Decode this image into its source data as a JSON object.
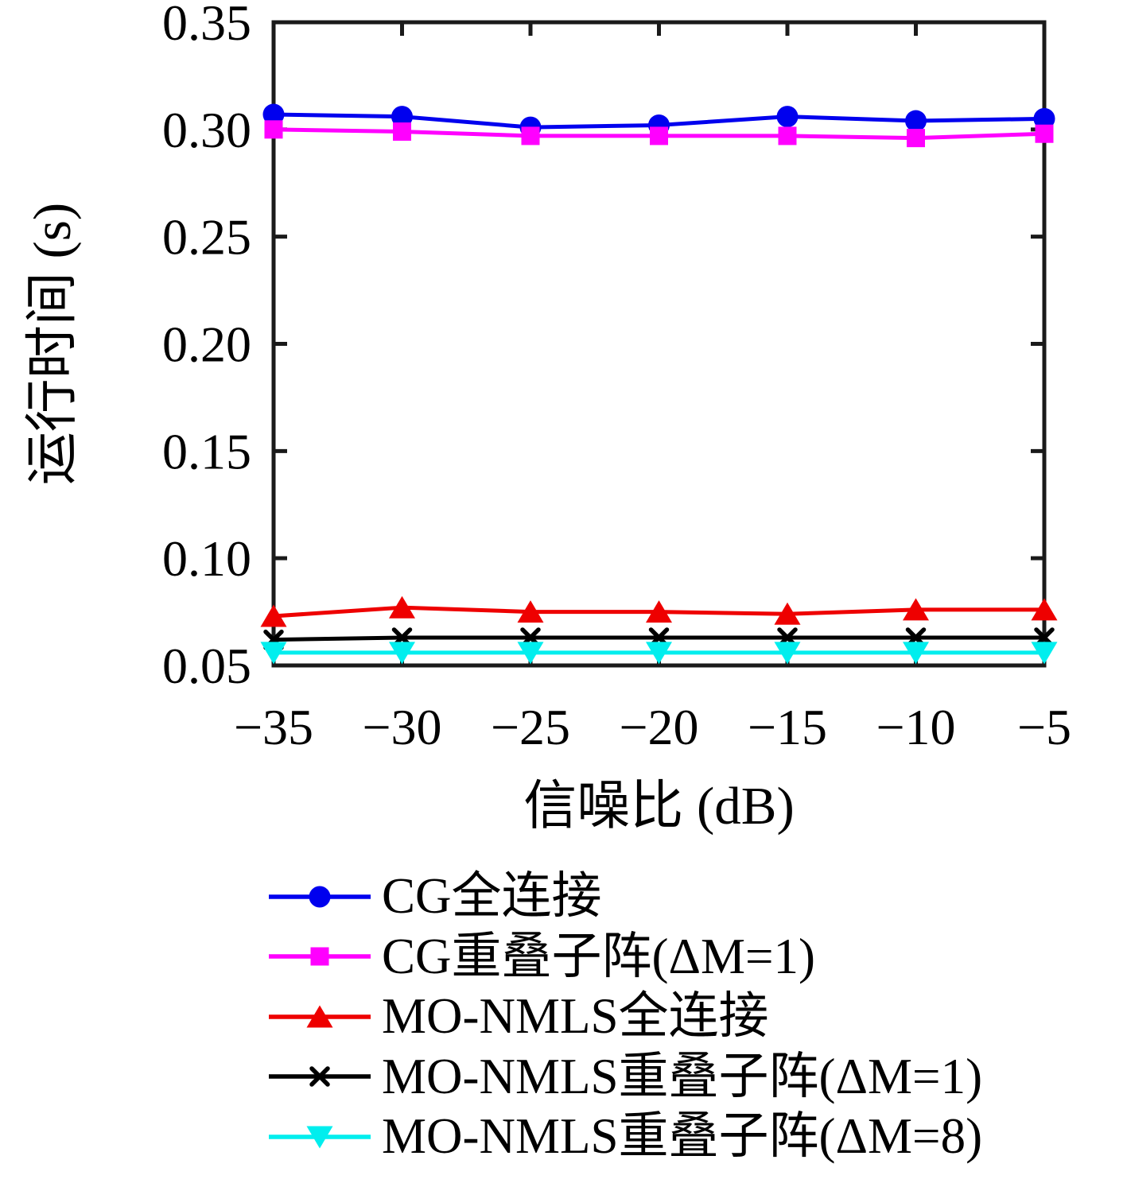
{
  "chart_data": {
    "type": "line",
    "title": "",
    "xlabel": "信噪比 (dB)",
    "ylabel": "运行时间 (s)",
    "x": [
      -35,
      -30,
      -25,
      -20,
      -15,
      -10,
      -5
    ],
    "xlim": [
      -35,
      -5
    ],
    "ylim": [
      0.05,
      0.35
    ],
    "xticks": [
      -35,
      -30,
      -25,
      -20,
      -15,
      -10,
      -5
    ],
    "yticks": [
      0.05,
      0.1,
      0.15,
      0.2,
      0.25,
      0.3,
      0.35
    ],
    "xtick_labels": [
      "−35",
      "−30",
      "−25",
      "−20",
      "−15",
      "−10",
      "−5"
    ],
    "ytick_labels": [
      "0.05",
      "0.10",
      "0.15",
      "0.20",
      "0.25",
      "0.30",
      "0.35"
    ],
    "grid": false,
    "legend_position": "below-left",
    "axis_color": "#1a1a1a",
    "series": [
      {
        "name": "CG全连接",
        "color": "#0000ee",
        "marker": "circle",
        "values": [
          0.307,
          0.306,
          0.301,
          0.302,
          0.306,
          0.304,
          0.305
        ]
      },
      {
        "name": "CG重叠子阵(ΔM=1)",
        "color": "#ff00ff",
        "marker": "square",
        "values": [
          0.3,
          0.299,
          0.297,
          0.297,
          0.297,
          0.296,
          0.298
        ]
      },
      {
        "name": "MO-NMLS全连接",
        "color": "#ee0000",
        "marker": "triangle-up",
        "values": [
          0.073,
          0.077,
          0.075,
          0.075,
          0.074,
          0.076,
          0.076
        ]
      },
      {
        "name": "MO-NMLS重叠子阵(ΔM=1)",
        "color": "#000000",
        "marker": "x",
        "values": [
          0.062,
          0.063,
          0.063,
          0.063,
          0.063,
          0.063,
          0.063
        ]
      },
      {
        "name": "MO-NMLS重叠子阵(ΔM=8)",
        "color": "#00eeee",
        "marker": "triangle-down",
        "values": [
          0.056,
          0.056,
          0.056,
          0.056,
          0.056,
          0.056,
          0.056
        ]
      }
    ]
  }
}
